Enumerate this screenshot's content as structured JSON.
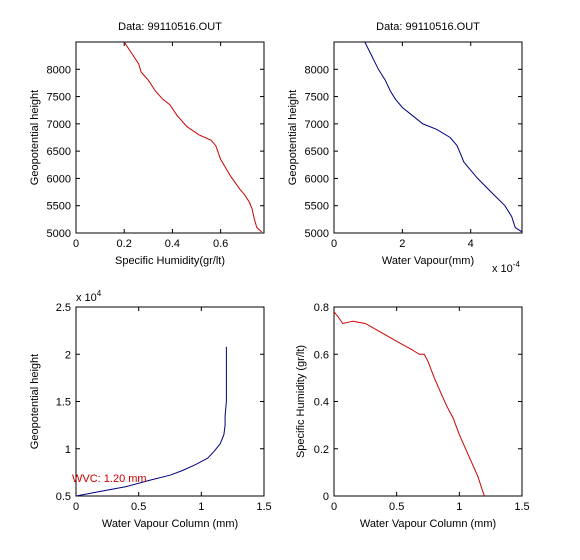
{
  "chart_data": [
    {
      "type": "line",
      "title": "Data: 99110516.OUT",
      "xlabel": "Specific Humidity(gr/lt)",
      "ylabel": "Geopotential height",
      "xlim": [
        0,
        0.78
      ],
      "ylim": [
        5000,
        8500
      ],
      "xticks": [
        0,
        0.2,
        0.4,
        0.6
      ],
      "xtick_labels": [
        "0",
        "0.2",
        "0.4",
        "0.6"
      ],
      "yticks": [
        5000,
        5500,
        6000,
        6500,
        7000,
        7500,
        8000
      ],
      "ytick_labels": [
        "5000",
        "5500",
        "6000",
        "6500",
        "7000",
        "7500",
        "8000"
      ],
      "line_color": "#cc0000",
      "series": [
        {
          "x": [
            0.2,
            0.23,
            0.26,
            0.27,
            0.3,
            0.33,
            0.36,
            0.39,
            0.42,
            0.46,
            0.51,
            0.56,
            0.58,
            0.6,
            0.64,
            0.68,
            0.7,
            0.72,
            0.73,
            0.74,
            0.75,
            0.77
          ],
          "y": [
            8500,
            8300,
            8100,
            7950,
            7800,
            7600,
            7450,
            7350,
            7150,
            6950,
            6800,
            6700,
            6600,
            6350,
            6050,
            5800,
            5700,
            5560,
            5450,
            5250,
            5100,
            5020
          ]
        }
      ]
    },
    {
      "type": "line",
      "title": "Data: 99110516.OUT",
      "xlabel": "Water Vapour(mm)",
      "ylabel": "Geopotential height",
      "x_multiplier": "x 10",
      "x_multiplier_exp": "-4",
      "xlim": [
        0,
        0.00055
      ],
      "ylim": [
        5000,
        8500
      ],
      "xticks": [
        0,
        0.0002,
        0.0004
      ],
      "xtick_labels": [
        "0",
        "2",
        "4"
      ],
      "yticks": [
        5000,
        5500,
        6000,
        6500,
        7000,
        7500,
        8000
      ],
      "ytick_labels": [
        "5000",
        "5500",
        "6000",
        "6500",
        "7000",
        "7500",
        "8000"
      ],
      "line_color": "#000080",
      "series": [
        {
          "x": [
            9e-05,
            0.00011,
            0.00013,
            0.00015,
            0.000165,
            0.00018,
            0.0002,
            0.00023,
            0.00026,
            0.0003,
            0.00034,
            0.00036,
            0.00038,
            0.00042,
            0.00046,
            0.0005,
            0.00052,
            0.00053,
            0.00055
          ],
          "y": [
            8500,
            8250,
            8000,
            7800,
            7600,
            7450,
            7300,
            7150,
            7000,
            6900,
            6750,
            6600,
            6300,
            6000,
            5750,
            5500,
            5300,
            5100,
            5020
          ]
        }
      ]
    },
    {
      "type": "line",
      "xlabel": "Water Vapour Column (mm)",
      "ylabel": "Geopotential height",
      "y_multiplier": "x 10",
      "y_multiplier_exp": "4",
      "xlim": [
        0,
        1.5
      ],
      "ylim": [
        5000,
        25000
      ],
      "xticks": [
        0,
        0.5,
        1,
        1.5
      ],
      "xtick_labels": [
        "0",
        "0.5",
        "1",
        "1.5"
      ],
      "yticks": [
        5000,
        10000,
        15000,
        20000,
        25000
      ],
      "ytick_labels": [
        "0.5",
        "1",
        "1.5",
        "2",
        "2.5"
      ],
      "line_color": "#000080",
      "annotation": "WVC: 1.20 mm",
      "annotation_color": "#cc0000",
      "series": [
        {
          "x": [
            0.0,
            0.2,
            0.4,
            0.6,
            0.75,
            0.85,
            0.95,
            1.05,
            1.1,
            1.15,
            1.18,
            1.19,
            1.19,
            1.2,
            1.2,
            1.2
          ],
          "y": [
            5000,
            5500,
            6000,
            6700,
            7200,
            7700,
            8300,
            9000,
            9700,
            10500,
            11500,
            12500,
            13500,
            15000,
            18000,
            20800
          ]
        }
      ]
    },
    {
      "type": "line",
      "xlabel": "Water Vapour Column (mm)",
      "ylabel": "Specific Humidity (gr/lt)",
      "xlim": [
        0,
        1.5
      ],
      "ylim": [
        0,
        0.8
      ],
      "xticks": [
        0,
        0.5,
        1,
        1.5
      ],
      "xtick_labels": [
        "0",
        "0.5",
        "1",
        "1.5"
      ],
      "yticks": [
        0,
        0.2,
        0.4,
        0.6,
        0.8
      ],
      "ytick_labels": [
        "0",
        "0.2",
        "0.4",
        "0.6",
        "0.8"
      ],
      "line_color": "#cc0000",
      "series": [
        {
          "x": [
            0.0,
            0.03,
            0.07,
            0.15,
            0.25,
            0.35,
            0.45,
            0.55,
            0.62,
            0.68,
            0.72,
            0.75,
            0.8,
            0.85,
            0.9,
            0.95,
            1.0,
            1.05,
            1.1,
            1.15,
            1.18,
            1.2
          ],
          "y": [
            0.78,
            0.76,
            0.73,
            0.74,
            0.73,
            0.7,
            0.67,
            0.64,
            0.62,
            0.6,
            0.6,
            0.57,
            0.5,
            0.44,
            0.38,
            0.33,
            0.26,
            0.2,
            0.14,
            0.08,
            0.03,
            0.0
          ]
        }
      ]
    }
  ]
}
